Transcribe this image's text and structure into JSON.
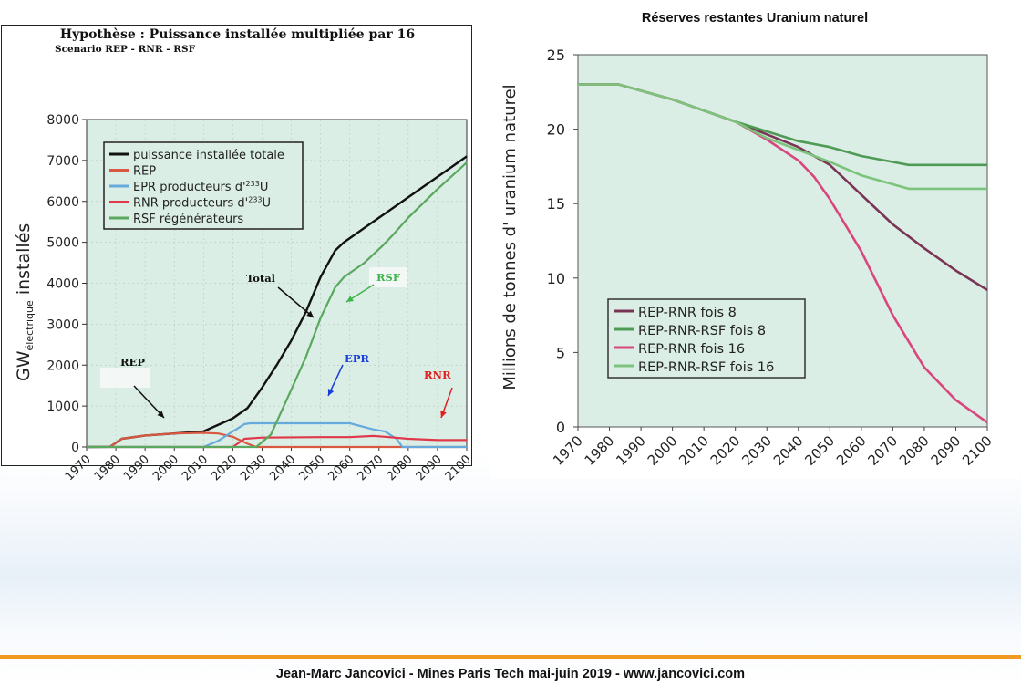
{
  "footer": {
    "text": "Jean-Marc Jancovici - Mines Paris Tech mai-juin 2019 - www.jancovici.com"
  },
  "colors": {
    "plot_bg": "#dbeee6",
    "footer_rule": "#f29a1f"
  },
  "chart_data": [
    {
      "type": "line",
      "title": "Hypothèse : Puissance installée multipliée par 16",
      "subtitle": "Scenario REP - RNR - RSF",
      "ylabel_main": "GW",
      "ylabel_sub": "électrique",
      "ylabel_rest": " installés",
      "xlabel": "",
      "xlim": [
        1970,
        2100
      ],
      "ylim": [
        0,
        8000
      ],
      "xticks": [
        "1970",
        "1980",
        "1990",
        "2000",
        "2010",
        "2020",
        "2030",
        "2040",
        "2050",
        "2060",
        "2070",
        "2080",
        "2090",
        "2100"
      ],
      "yticks": [
        "0",
        "1000",
        "2000",
        "3000",
        "4000",
        "5000",
        "6000",
        "7000",
        "8000"
      ],
      "grid": true,
      "legend_position": "top-left",
      "series": [
        {
          "name": "puissance installée totale",
          "color": "#111111",
          "points": [
            [
              1970,
              0
            ],
            [
              1978,
              5
            ],
            [
              1982,
              200
            ],
            [
              1990,
              280
            ],
            [
              2000,
              330
            ],
            [
              2010,
              380
            ],
            [
              2020,
              700
            ],
            [
              2025,
              950
            ],
            [
              2030,
              1450
            ],
            [
              2035,
              2000
            ],
            [
              2040,
              2600
            ],
            [
              2045,
              3300
            ],
            [
              2050,
              4150
            ],
            [
              2055,
              4800
            ],
            [
              2058,
              5000
            ],
            [
              2065,
              5350
            ],
            [
              2075,
              5850
            ],
            [
              2085,
              6350
            ],
            [
              2095,
              6850
            ],
            [
              2100,
              7100
            ]
          ]
        },
        {
          "name": "REP",
          "color": "#d95840",
          "points": [
            [
              1970,
              0
            ],
            [
              1978,
              5
            ],
            [
              1982,
              200
            ],
            [
              1990,
              280
            ],
            [
              2000,
              330
            ],
            [
              2010,
              345
            ],
            [
              2015,
              330
            ],
            [
              2020,
              250
            ],
            [
              2025,
              80
            ],
            [
              2028,
              0
            ],
            [
              2100,
              0
            ]
          ]
        },
        {
          "name": "EPR producteurs d'",
          "name_sup": "233",
          "name_end": "U",
          "color": "#66aadd",
          "points": [
            [
              1970,
              0
            ],
            [
              2010,
              0
            ],
            [
              2015,
              150
            ],
            [
              2020,
              380
            ],
            [
              2024,
              560
            ],
            [
              2026,
              580
            ],
            [
              2060,
              580
            ],
            [
              2068,
              430
            ],
            [
              2072,
              380
            ],
            [
              2076,
              200
            ],
            [
              2078,
              0
            ],
            [
              2100,
              0
            ]
          ]
        },
        {
          "name": "RNR producteurs d'",
          "name_sup": "233",
          "name_end": "U",
          "color": "#e0384a",
          "points": [
            [
              1970,
              0
            ],
            [
              2020,
              0
            ],
            [
              2024,
              200
            ],
            [
              2030,
              230
            ],
            [
              2050,
              240
            ],
            [
              2060,
              240
            ],
            [
              2068,
              270
            ],
            [
              2072,
              250
            ],
            [
              2080,
              200
            ],
            [
              2090,
              170
            ],
            [
              2100,
              170
            ]
          ]
        },
        {
          "name": "RSF régénérateurs",
          "color": "#59a85d",
          "points": [
            [
              1970,
              0
            ],
            [
              2028,
              0
            ],
            [
              2033,
              300
            ],
            [
              2040,
              1400
            ],
            [
              2045,
              2200
            ],
            [
              2050,
              3150
            ],
            [
              2055,
              3900
            ],
            [
              2058,
              4150
            ],
            [
              2065,
              4500
            ],
            [
              2071,
              4900
            ],
            [
              2075,
              5200
            ],
            [
              2080,
              5600
            ],
            [
              2090,
              6300
            ],
            [
              2100,
              6950
            ]
          ]
        }
      ],
      "annotations": [
        {
          "text": "Total",
          "color": "#111111"
        },
        {
          "text": "RSF",
          "color": "#3cb44b"
        },
        {
          "text": "EPR",
          "color": "#1a3fd6"
        },
        {
          "text": "REP",
          "color": "#111111"
        },
        {
          "text": "RNR",
          "color": "#e02020"
        }
      ]
    },
    {
      "type": "line",
      "title": "Réserves restantes Uranium naturel",
      "ylabel": "Millions de tonnes d' uranium naturel",
      "xlabel": "",
      "xlim": [
        1970,
        2100
      ],
      "ylim": [
        0,
        25
      ],
      "xticks": [
        "1970",
        "1980",
        "1990",
        "2000",
        "2010",
        "2020",
        "2030",
        "2040",
        "2050",
        "2060",
        "2070",
        "2080",
        "2090",
        "2100"
      ],
      "yticks": [
        "0",
        "5",
        "10",
        "15",
        "20",
        "25"
      ],
      "grid": false,
      "legend_position": "bottom-left",
      "series": [
        {
          "name": "REP-RNR fois 8",
          "color": "#7a3555",
          "points": [
            [
              1970,
              23
            ],
            [
              1983,
              23
            ],
            [
              2000,
              22
            ],
            [
              2020,
              20.5
            ],
            [
              2040,
              18.8
            ],
            [
              2050,
              17.6
            ],
            [
              2060,
              15.6
            ],
            [
              2070,
              13.6
            ],
            [
              2080,
              12.0
            ],
            [
              2090,
              10.5
            ],
            [
              2100,
              9.2
            ]
          ]
        },
        {
          "name": "REP-RNR-RSF fois 8",
          "color": "#4f9a55",
          "points": [
            [
              1970,
              23
            ],
            [
              1983,
              23
            ],
            [
              2000,
              22
            ],
            [
              2020,
              20.5
            ],
            [
              2040,
              19.2
            ],
            [
              2050,
              18.8
            ],
            [
              2060,
              18.2
            ],
            [
              2070,
              17.8
            ],
            [
              2075,
              17.6
            ],
            [
              2100,
              17.6
            ]
          ]
        },
        {
          "name": "REP-RNR fois 16",
          "color": "#d9467d",
          "points": [
            [
              1970,
              23
            ],
            [
              1983,
              23
            ],
            [
              2000,
              22
            ],
            [
              2020,
              20.5
            ],
            [
              2030,
              19.3
            ],
            [
              2040,
              17.9
            ],
            [
              2045,
              16.8
            ],
            [
              2050,
              15.3
            ],
            [
              2060,
              11.8
            ],
            [
              2070,
              7.5
            ],
            [
              2080,
              4.0
            ],
            [
              2090,
              1.8
            ],
            [
              2100,
              0.3
            ]
          ]
        },
        {
          "name": "REP-RNR-RSF fois 16",
          "color": "#7cc47c",
          "points": [
            [
              1970,
              23
            ],
            [
              1983,
              23
            ],
            [
              2000,
              22
            ],
            [
              2020,
              20.5
            ],
            [
              2030,
              19.4
            ],
            [
              2040,
              18.6
            ],
            [
              2050,
              17.8
            ],
            [
              2060,
              16.9
            ],
            [
              2070,
              16.3
            ],
            [
              2075,
              16.0
            ],
            [
              2100,
              16.0
            ]
          ]
        }
      ]
    }
  ]
}
